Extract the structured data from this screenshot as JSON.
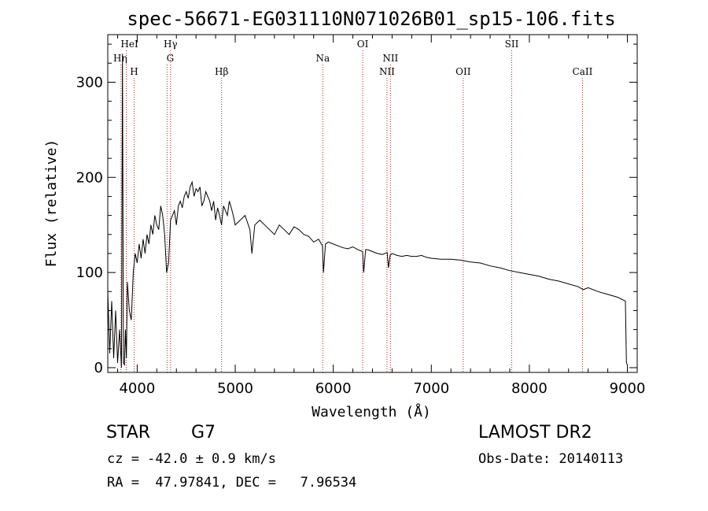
{
  "chart_data": {
    "type": "line",
    "title": "spec-56671-EG031110N071026B01_sp15-106.fits",
    "xlabel": "Wavelength (Å)",
    "ylabel": "Flux (relative)",
    "xlim": [
      3700,
      9100
    ],
    "ylim": [
      -5,
      350
    ],
    "x_ticks": [
      4000,
      5000,
      6000,
      7000,
      8000,
      9000
    ],
    "y_ticks": [
      0,
      100,
      200,
      300
    ],
    "grid": false,
    "series": [
      {
        "x": [
          3700,
          3720,
          3740,
          3760,
          3780,
          3800,
          3820,
          3840,
          3850,
          3860,
          3870,
          3880,
          3890,
          3900,
          3920,
          3940,
          3960,
          3980,
          4000,
          4020,
          4040,
          4060,
          4080,
          4100,
          4120,
          4140,
          4160,
          4180,
          4200,
          4220,
          4240,
          4260,
          4280,
          4300,
          4320,
          4340,
          4360,
          4380,
          4400,
          4420,
          4440,
          4460,
          4480,
          4500,
          4520,
          4540,
          4560,
          4580,
          4600,
          4620,
          4640,
          4660,
          4680,
          4700,
          4720,
          4740,
          4760,
          4780,
          4800,
          4820,
          4840,
          4860,
          4880,
          4900,
          4920,
          4940,
          4960,
          4980,
          5000,
          5050,
          5100,
          5150,
          5170,
          5200,
          5250,
          5300,
          5350,
          5400,
          5450,
          5500,
          5550,
          5600,
          5650,
          5700,
          5750,
          5800,
          5850,
          5890,
          5900,
          5920,
          5950,
          6000,
          6050,
          6100,
          6150,
          6200,
          6250,
          6300,
          6310,
          6330,
          6350,
          6400,
          6450,
          6500,
          6550,
          6563,
          6580,
          6600,
          6650,
          6700,
          6750,
          6800,
          6850,
          6900,
          6950,
          7000,
          7100,
          7200,
          7300,
          7400,
          7500,
          7600,
          7700,
          7800,
          7900,
          8000,
          8100,
          8200,
          8300,
          8400,
          8500,
          8550,
          8600,
          8700,
          8800,
          8900,
          8980,
          8990,
          9000
        ],
        "y": [
          80,
          15,
          70,
          10,
          60,
          5,
          40,
          0,
          330,
          5,
          3,
          40,
          10,
          90,
          60,
          50,
          100,
          120,
          110,
          130,
          115,
          135,
          120,
          140,
          130,
          150,
          140,
          160,
          150,
          145,
          170,
          160,
          140,
          100,
          110,
          155,
          160,
          165,
          150,
          170,
          175,
          168,
          180,
          185,
          178,
          190,
          195,
          180,
          188,
          185,
          190,
          170,
          175,
          185,
          180,
          175,
          165,
          175,
          155,
          168,
          160,
          150,
          170,
          165,
          160,
          175,
          168,
          160,
          150,
          155,
          160,
          145,
          120,
          150,
          155,
          150,
          145,
          140,
          150,
          145,
          140,
          148,
          145,
          140,
          138,
          132,
          135,
          128,
          100,
          130,
          132,
          130,
          128,
          126,
          125,
          127,
          124,
          122,
          100,
          124,
          124,
          122,
          120,
          119,
          121,
          105,
          118,
          120,
          118,
          117,
          118,
          117,
          117,
          118,
          116,
          115,
          114,
          114,
          113,
          111,
          110,
          107,
          105,
          102,
          100,
          98,
          96,
          93,
          91,
          88,
          85,
          82,
          84,
          80,
          77,
          74,
          70,
          5,
          3
        ]
      }
    ],
    "line_markers": [
      {
        "label": "HeI",
        "x": 3889,
        "row": 0,
        "dx": 4
      },
      {
        "label": "Hη",
        "x": 3835,
        "row": 1,
        "dx": -1
      },
      {
        "label": "H",
        "x": 3969,
        "row": 2,
        "dx": 0
      },
      {
        "label": "Hγ",
        "x": 4340,
        "row": 0,
        "dx": 0
      },
      {
        "label": "G",
        "x": 4305,
        "row": 1,
        "dx": 4
      },
      {
        "label": "Hβ",
        "x": 4861,
        "row": 2,
        "dx": 0
      },
      {
        "label": "Na",
        "x": 5893,
        "row": 1,
        "dx": 0
      },
      {
        "label": "OI",
        "x": 6300,
        "row": 0,
        "dx": 0
      },
      {
        "label": "NII",
        "x": 6583,
        "row": 1,
        "dx": 0
      },
      {
        "label": "NII",
        "x": 6548,
        "row": 2,
        "dx": 0
      },
      {
        "label": "OII",
        "x": 7325,
        "row": 2,
        "dx": 0
      },
      {
        "label": "SII",
        "x": 7820,
        "row": 0,
        "dx": 0
      },
      {
        "label": "CaII",
        "x": 8542,
        "row": 2,
        "dx": 0
      }
    ]
  },
  "info": {
    "object_class": "STAR",
    "subclass": "G7",
    "survey": "LAMOST DR2",
    "cz": "cz = -42.0 ± 0.9 km/s",
    "obs_date": "Obs-Date: 20140113",
    "radec": "RA =  47.97841, DEC =   7.96534"
  },
  "colors": {
    "spectrum": "#000000",
    "line_marker": "#b22222",
    "axes": "#000000"
  }
}
